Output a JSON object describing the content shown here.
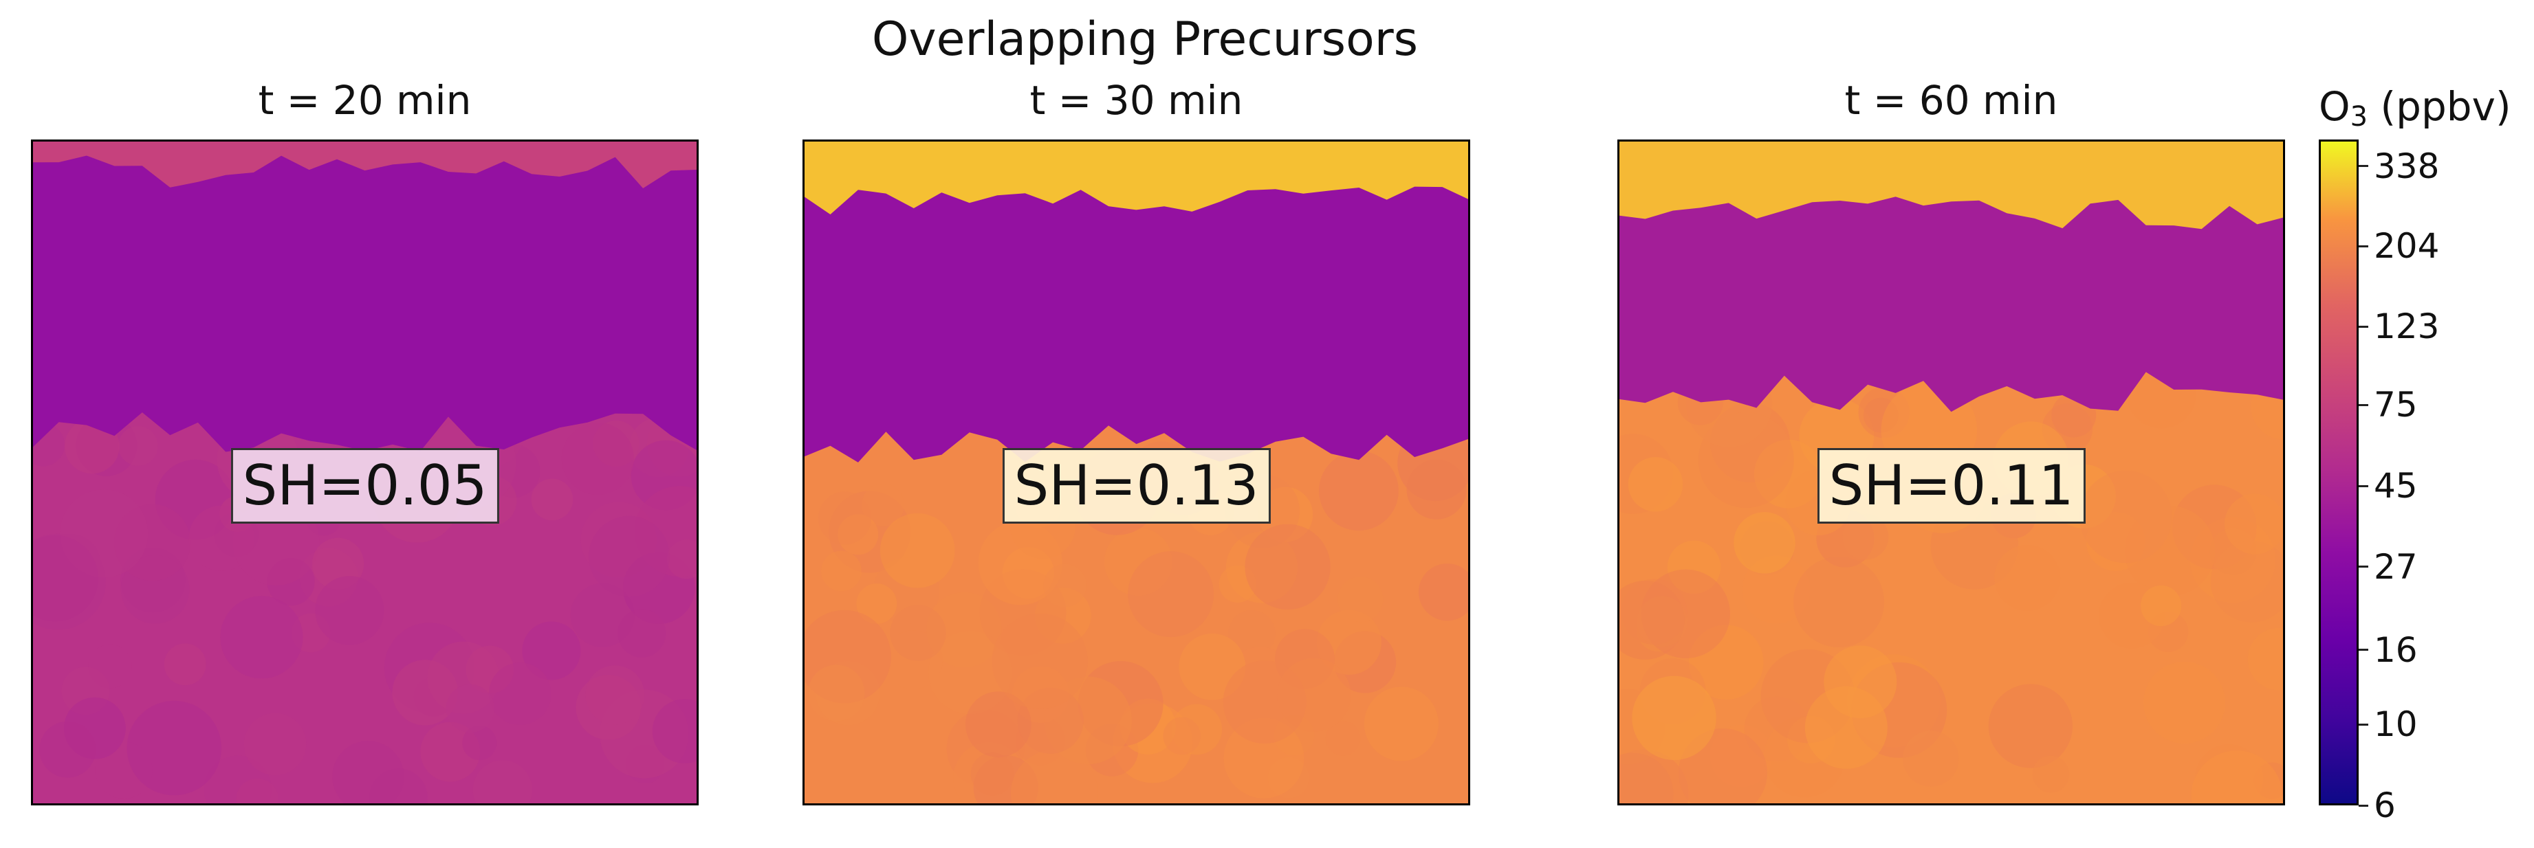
{
  "title": "Overlapping Precursors",
  "colorbar": {
    "label_main": "O",
    "label_sub": "3",
    "label_unit": " (ppbv)",
    "ticks": [
      6,
      10,
      16,
      27,
      45,
      75,
      123,
      204,
      338
    ],
    "range": [
      6,
      400
    ],
    "scale": "log",
    "colormap": "plasma"
  },
  "chart_data": {
    "type": "heatmap",
    "title": "Overlapping Precursors",
    "panels": [
      {
        "title": "t = 20 min",
        "annotation": "SH=0.05",
        "regions": [
          {
            "region": "top edge",
            "value": 75
          },
          {
            "region": "polluted band",
            "value": 32
          },
          {
            "region": "background",
            "value": 58
          }
        ],
        "band_rows": [
          0.05,
          0.44
        ]
      },
      {
        "title": "t = 30 min",
        "annotation": "SH=0.13",
        "regions": [
          {
            "region": "top edge",
            "value": 300
          },
          {
            "region": "polluted band",
            "value": 32
          },
          {
            "region": "background",
            "value": 210
          }
        ],
        "band_rows": [
          0.09,
          0.46
        ]
      },
      {
        "title": "t = 60 min",
        "annotation": "SH=0.11",
        "regions": [
          {
            "region": "top edge",
            "value": 290
          },
          {
            "region": "polluted band",
            "value": 40
          },
          {
            "region": "background",
            "value": 220
          }
        ],
        "band_rows": [
          0.11,
          0.38
        ]
      }
    ]
  }
}
